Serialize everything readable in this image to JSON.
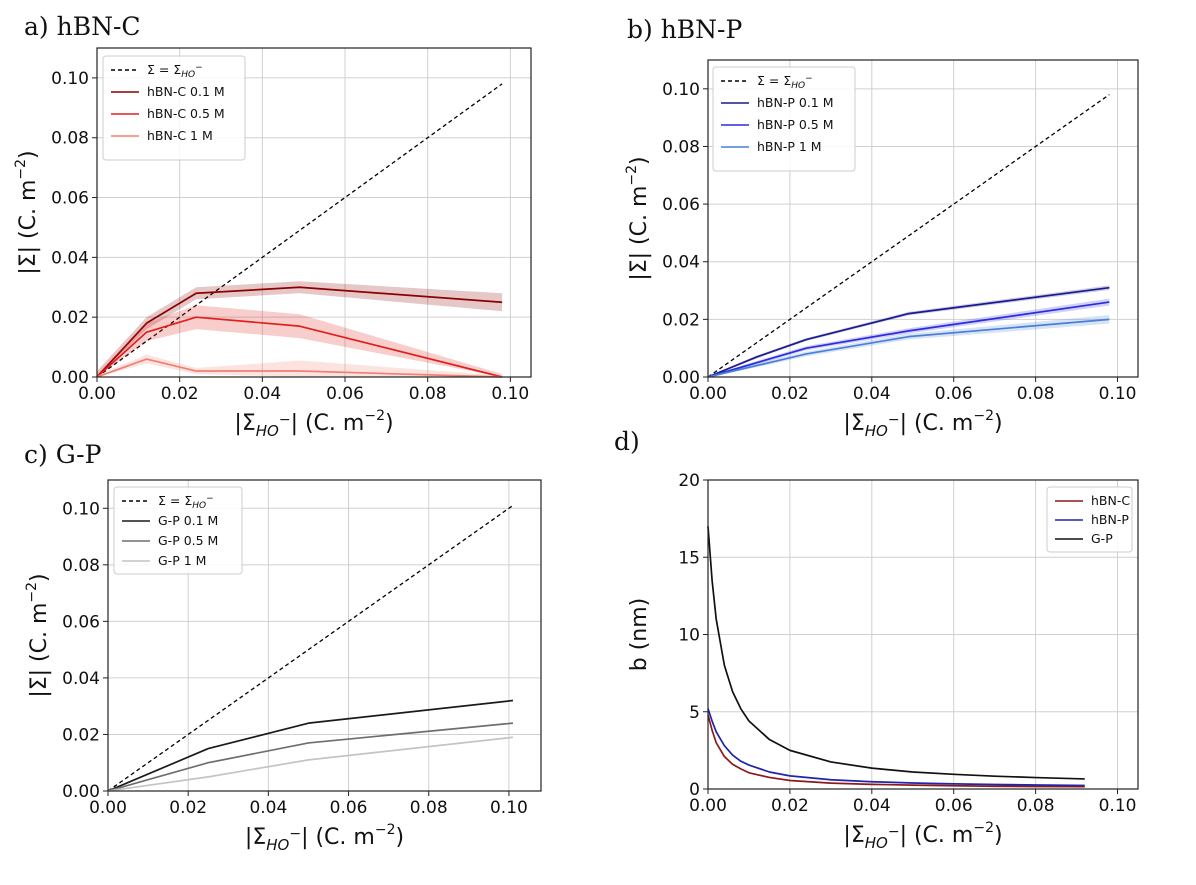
{
  "chart_data": [
    {
      "type": "line",
      "panel_label": "a) hBN-C",
      "xlabel": "|Σ",
      "xlabel_sub": "HO",
      "xlabel_tail": "| (C. m",
      "ylabel": "|Σ| (C. m",
      "unit_exp": "−2",
      "xlim": [
        0,
        0.105
      ],
      "ylim": [
        0,
        0.11
      ],
      "xticks": [
        "0.00",
        "0.02",
        "0.04",
        "0.06",
        "0.08",
        "0.10"
      ],
      "yticks": [
        "0.00",
        "0.02",
        "0.04",
        "0.06",
        "0.08",
        "0.10"
      ],
      "legend_loc": "upper-left",
      "series": [
        {
          "name": "Σ = Σ",
          "name_sub": "HO",
          "color": "#000000",
          "dashed": true,
          "x": [
            0,
            0.098
          ],
          "y": [
            0,
            0.098
          ]
        },
        {
          "name": "hBN-C  0.1 M",
          "color": "#8b0000",
          "x": [
            0,
            0.012,
            0.024,
            0.049,
            0.098
          ],
          "y": [
            0,
            0.018,
            0.028,
            0.03,
            0.025
          ],
          "band": [
            0.002,
            0.002,
            0.002,
            0.002,
            0.003
          ]
        },
        {
          "name": "hBN-C  0.5 M",
          "color": "#e0201b",
          "x": [
            0,
            0.012,
            0.024,
            0.049,
            0.098
          ],
          "y": [
            0,
            0.015,
            0.02,
            0.017,
            0
          ],
          "band": [
            0.001,
            0.003,
            0.004,
            0.004,
            0.001
          ]
        },
        {
          "name": "hBN-C  1 M",
          "color": "#f08070",
          "x": [
            0,
            0.012,
            0.024,
            0.049,
            0.098
          ],
          "y": [
            0,
            0.006,
            0.002,
            0.002,
            0
          ],
          "band": [
            0.0005,
            0.0015,
            0.001,
            0.0035,
            0.0005
          ]
        }
      ]
    },
    {
      "type": "line",
      "panel_label": "b) hBN-P",
      "xlabel": "|Σ",
      "xlabel_sub": "HO",
      "xlabel_tail": "| (C. m",
      "ylabel": "|Σ| (C. m",
      "unit_exp": "−2",
      "xlim": [
        0,
        0.105
      ],
      "ylim": [
        0,
        0.11
      ],
      "xticks": [
        "0.00",
        "0.02",
        "0.04",
        "0.06",
        "0.08",
        "0.10"
      ],
      "yticks": [
        "0.00",
        "0.02",
        "0.04",
        "0.06",
        "0.08",
        "0.10"
      ],
      "legend_loc": "upper-left",
      "series": [
        {
          "name": "Σ = Σ",
          "name_sub": "HO",
          "color": "#000000",
          "dashed": true,
          "x": [
            0,
            0.098
          ],
          "y": [
            0,
            0.098
          ]
        },
        {
          "name": "hBN-P  0.1 M",
          "color": "#1a1a8c",
          "x": [
            0,
            0.012,
            0.024,
            0.049,
            0.098
          ],
          "y": [
            0,
            0.007,
            0.013,
            0.022,
            0.031
          ],
          "band": [
            0.0003,
            0.0005,
            0.0005,
            0.0006,
            0.0008
          ]
        },
        {
          "name": "hBN-P  0.5 M",
          "color": "#2b2be0",
          "x": [
            0,
            0.012,
            0.024,
            0.049,
            0.098
          ],
          "y": [
            0,
            0.005,
            0.01,
            0.016,
            0.026
          ],
          "band": [
            0.0003,
            0.0006,
            0.0007,
            0.0009,
            0.0012
          ]
        },
        {
          "name": "hBN-P  1 M",
          "color": "#4a7fd6",
          "x": [
            0,
            0.012,
            0.024,
            0.049,
            0.098
          ],
          "y": [
            0,
            0.004,
            0.008,
            0.014,
            0.02
          ],
          "band": [
            0.0003,
            0.0006,
            0.0008,
            0.001,
            0.0015
          ]
        }
      ]
    },
    {
      "type": "line",
      "panel_label": "c) G-P",
      "xlabel": "|Σ",
      "xlabel_sub": "HO",
      "xlabel_tail": "| (C. m",
      "ylabel": "|Σ| (C. m",
      "unit_exp": "−2",
      "xlim": [
        0,
        0.108
      ],
      "ylim": [
        0,
        0.11
      ],
      "xticks": [
        "0.00",
        "0.02",
        "0.04",
        "0.06",
        "0.08",
        "0.10"
      ],
      "yticks": [
        "0.00",
        "0.02",
        "0.04",
        "0.06",
        "0.08",
        "0.10"
      ],
      "legend_loc": "upper-left",
      "series": [
        {
          "name": "Σ = Σ",
          "name_sub": "HO",
          "color": "#000000",
          "dashed": true,
          "x": [
            0,
            0.101
          ],
          "y": [
            0,
            0.101
          ]
        },
        {
          "name": "G-P  0.1 M",
          "color": "#1a1a1a",
          "x": [
            0,
            0.025,
            0.05,
            0.101
          ],
          "y": [
            0,
            0.015,
            0.024,
            0.032
          ]
        },
        {
          "name": "G-P  0.5 M",
          "color": "#6e6e6e",
          "x": [
            0,
            0.025,
            0.05,
            0.101
          ],
          "y": [
            0,
            0.01,
            0.017,
            0.024
          ]
        },
        {
          "name": "G-P  1 M",
          "color": "#c4c4c4",
          "x": [
            0,
            0.025,
            0.05,
            0.101
          ],
          "y": [
            0,
            0.005,
            0.011,
            0.019
          ]
        }
      ]
    },
    {
      "type": "line",
      "panel_label": "d)",
      "xlabel": "|Σ",
      "xlabel_sub": "HO",
      "xlabel_tail": "| (C. m",
      "unit_exp": "−2",
      "ylabel": "b (nm)",
      "xlim": [
        0,
        0.105
      ],
      "ylim": [
        0,
        20
      ],
      "xticks": [
        "0.00",
        "0.02",
        "0.04",
        "0.06",
        "0.08",
        "0.10"
      ],
      "yticks": [
        "0",
        "5",
        "10",
        "15",
        "20"
      ],
      "legend_loc": "upper-right",
      "series": [
        {
          "name": "hBN-C",
          "color": "#8b1a1a",
          "x": [
            0,
            0.001,
            0.002,
            0.004,
            0.006,
            0.008,
            0.01,
            0.015,
            0.02,
            0.03,
            0.04,
            0.05,
            0.06,
            0.07,
            0.08,
            0.092
          ],
          "y": [
            4.8,
            3.8,
            3.0,
            2.1,
            1.6,
            1.3,
            1.05,
            0.75,
            0.55,
            0.38,
            0.3,
            0.25,
            0.21,
            0.18,
            0.16,
            0.15
          ]
        },
        {
          "name": "hBN-P",
          "color": "#2222aa",
          "x": [
            0,
            0.001,
            0.002,
            0.004,
            0.006,
            0.008,
            0.01,
            0.015,
            0.02,
            0.03,
            0.04,
            0.05,
            0.06,
            0.07,
            0.08,
            0.092
          ],
          "y": [
            5.2,
            4.4,
            3.7,
            2.8,
            2.2,
            1.8,
            1.55,
            1.1,
            0.85,
            0.6,
            0.47,
            0.39,
            0.33,
            0.29,
            0.26,
            0.23
          ]
        },
        {
          "name": "G-P",
          "color": "#111111",
          "x": [
            0,
            0.001,
            0.002,
            0.004,
            0.006,
            0.008,
            0.01,
            0.015,
            0.02,
            0.03,
            0.04,
            0.05,
            0.06,
            0.07,
            0.08,
            0.092
          ],
          "y": [
            17,
            13.5,
            11.0,
            8.0,
            6.3,
            5.2,
            4.4,
            3.2,
            2.5,
            1.75,
            1.35,
            1.1,
            0.95,
            0.83,
            0.74,
            0.65
          ]
        }
      ]
    }
  ]
}
